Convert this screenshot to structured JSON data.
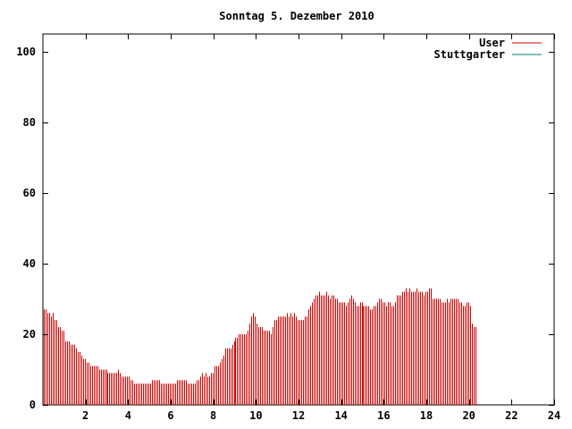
{
  "chart_data": {
    "type": "bar",
    "title": "Sonntag 5. Dezember 2010",
    "xlabel": "",
    "ylabel": "",
    "xlim": [
      0,
      24
    ],
    "ylim": [
      0,
      105
    ],
    "x_ticks": [
      2,
      4,
      6,
      8,
      10,
      12,
      14,
      16,
      18,
      20,
      22,
      24
    ],
    "y_ticks": [
      0,
      20,
      40,
      60,
      80,
      100
    ],
    "grid": false,
    "legend_position": "top-right",
    "series": [
      {
        "name": "User",
        "color": "#cc0000",
        "samples_per_hour": 12,
        "values": [
          27,
          27,
          26,
          26,
          25,
          26,
          24,
          24,
          22,
          22,
          21,
          21,
          18,
          18,
          18,
          17,
          17,
          17,
          16,
          15,
          15,
          14,
          13,
          13,
          12,
          12,
          11,
          11,
          11,
          11,
          11,
          10,
          10,
          10,
          10,
          10,
          9,
          9,
          9,
          9,
          9,
          9,
          10,
          9,
          8,
          8,
          8,
          8,
          8,
          7,
          7,
          6,
          6,
          6,
          6,
          6,
          6,
          6,
          6,
          6,
          6,
          7,
          7,
          7,
          7,
          7,
          6,
          6,
          6,
          6,
          6,
          6,
          6,
          6,
          6,
          7,
          7,
          7,
          7,
          7,
          7,
          6,
          6,
          6,
          6,
          6,
          7,
          7,
          8,
          9,
          8,
          9,
          8,
          8,
          9,
          9,
          11,
          11,
          11,
          12,
          13,
          14,
          16,
          16,
          16,
          16,
          17,
          18,
          19,
          19,
          20,
          20,
          20,
          20,
          20,
          21,
          23,
          25,
          26,
          25,
          23,
          22,
          22,
          22,
          21,
          21,
          21,
          21,
          20,
          22,
          24,
          24,
          25,
          25,
          25,
          25,
          25,
          26,
          25,
          26,
          25,
          26,
          25,
          24,
          24,
          24,
          24,
          25,
          25,
          27,
          28,
          29,
          30,
          31,
          31,
          32,
          31,
          31,
          31,
          32,
          31,
          30,
          31,
          31,
          30,
          30,
          29,
          29,
          29,
          29,
          28,
          29,
          30,
          31,
          30,
          29,
          28,
          28,
          29,
          29,
          28,
          28,
          28,
          28,
          27,
          27,
          28,
          28,
          29,
          30,
          30,
          29,
          29,
          28,
          29,
          29,
          28,
          28,
          29,
          31,
          31,
          31,
          32,
          32,
          33,
          32,
          33,
          32,
          32,
          32,
          33,
          32,
          32,
          32,
          31,
          32,
          32,
          33,
          33,
          30,
          30,
          30,
          30,
          30,
          29,
          29,
          29,
          30,
          29,
          30,
          30,
          30,
          30,
          30,
          29,
          29,
          28,
          28,
          29,
          29,
          28,
          23,
          22,
          22
        ]
      },
      {
        "name": "Stuttgarter",
        "color": "#008080",
        "values": []
      }
    ]
  }
}
